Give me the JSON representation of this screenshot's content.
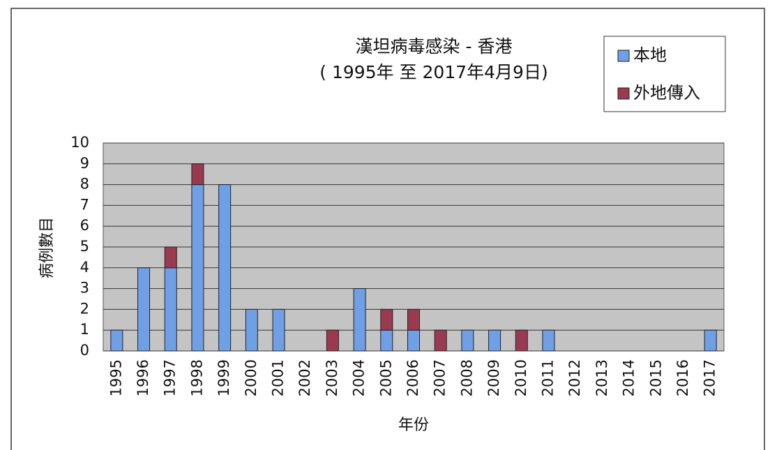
{
  "chart_data": {
    "type": "stacked-bar",
    "title": "漢坦病毒感染 - 香港",
    "subtitle": "( 1995年 至 2017年4月9日)",
    "x_label": "年份",
    "y_label": "病例數目",
    "categories": [
      "1995",
      "1996",
      "1997",
      "1998",
      "1999",
      "2000",
      "2001",
      "2002",
      "2003",
      "2004",
      "2005",
      "2006",
      "2007",
      "2008",
      "2009",
      "2010",
      "2011",
      "2012",
      "2013",
      "2014",
      "2015",
      "2016",
      "2017"
    ],
    "series": [
      {
        "name": "本地",
        "color": "#6f9fe4",
        "values": [
          1,
          4,
          4,
          8,
          8,
          2,
          2,
          0,
          0,
          3,
          1,
          1,
          0,
          1,
          1,
          0,
          1,
          0,
          0,
          0,
          0,
          0,
          1
        ]
      },
      {
        "name": "外地傳入",
        "color": "#9a3a50",
        "values": [
          0,
          0,
          1,
          1,
          0,
          0,
          0,
          0,
          1,
          0,
          1,
          1,
          1,
          0,
          0,
          1,
          0,
          0,
          0,
          0,
          0,
          0,
          0
        ]
      }
    ],
    "ylim": [
      0,
      10
    ],
    "yticks": [
      0,
      1,
      2,
      3,
      4,
      5,
      6,
      7,
      8,
      9,
      10
    ],
    "grid": true,
    "legend": "top-right"
  }
}
